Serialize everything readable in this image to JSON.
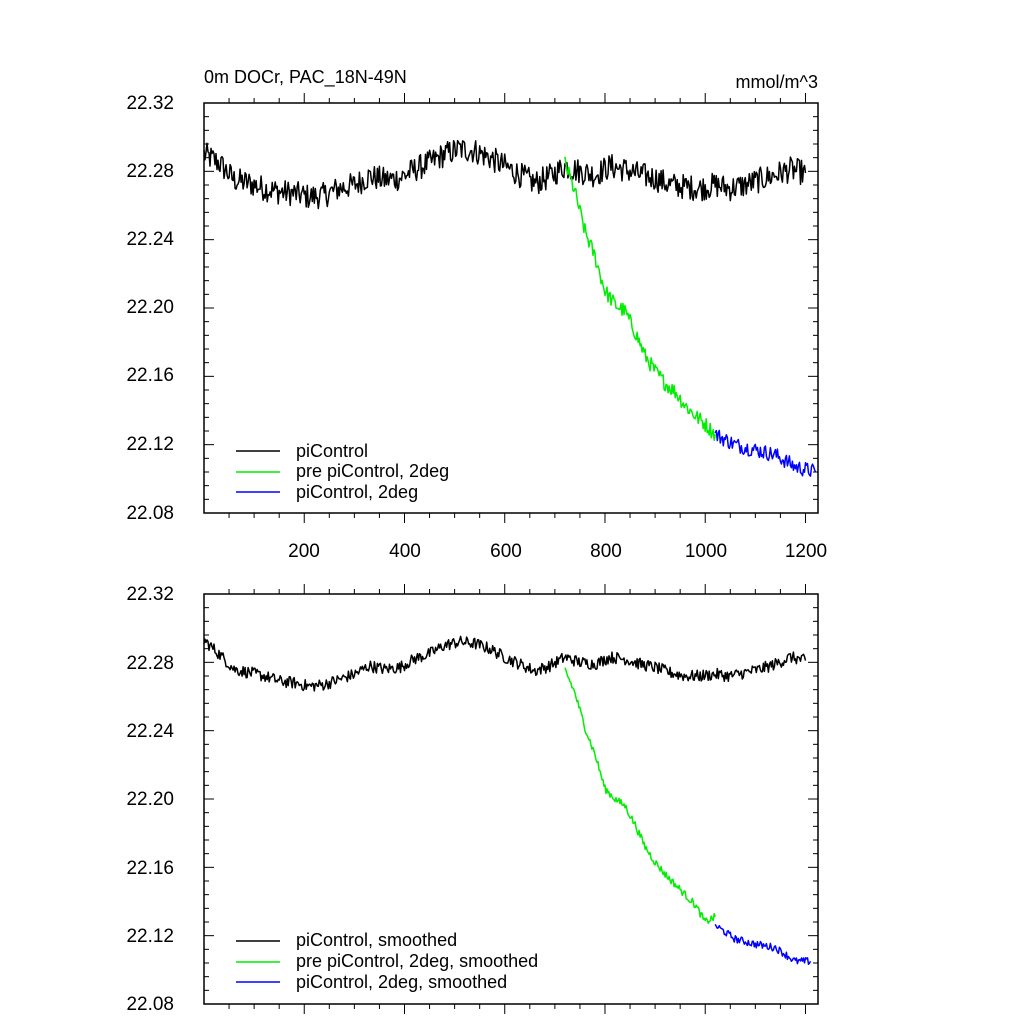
{
  "chart_data": [
    {
      "type": "line",
      "title": "0m DOCr, PAC_18N-49N",
      "units": "mmol/m^3",
      "xlim": [
        0,
        1225
      ],
      "ylim": [
        22.08,
        22.32
      ],
      "x_ticks": [
        "200",
        "400",
        "600",
        "800",
        "1000",
        "1200"
      ],
      "y_ticks": [
        "22.32",
        "22.28",
        "22.24",
        "22.20",
        "22.16",
        "22.12",
        "22.08"
      ],
      "legend_position": "bottom-left",
      "grid": false,
      "series": [
        {
          "name": "piControl",
          "color": "#000000",
          "noise": 0.0075,
          "x": [
            0,
            30,
            60,
            90,
            120,
            150,
            180,
            210,
            240,
            270,
            300,
            330,
            360,
            390,
            420,
            450,
            480,
            510,
            540,
            570,
            600,
            630,
            660,
            690,
            720,
            750,
            780,
            810,
            840,
            870,
            900,
            930,
            960,
            990,
            1020,
            1050,
            1080,
            1110,
            1140,
            1170,
            1200
          ],
          "y": [
            22.29,
            22.285,
            22.275,
            22.273,
            22.27,
            22.268,
            22.267,
            22.265,
            22.266,
            22.27,
            22.272,
            22.277,
            22.275,
            22.276,
            22.281,
            22.285,
            22.29,
            22.293,
            22.292,
            22.288,
            22.283,
            22.278,
            22.273,
            22.277,
            22.283,
            22.28,
            22.278,
            22.283,
            22.281,
            22.278,
            22.276,
            22.272,
            22.271,
            22.27,
            22.272,
            22.27,
            22.272,
            22.275,
            22.278,
            22.281,
            22.279
          ]
        },
        {
          "name": "pre piControl, 2deg",
          "color": "#00ee00",
          "noise": 0.0045,
          "x": [
            720,
            740,
            760,
            780,
            800,
            820,
            840,
            860,
            880,
            900,
            920,
            940,
            960,
            980,
            1000,
            1020
          ],
          "y": [
            22.285,
            22.268,
            22.245,
            22.23,
            22.21,
            22.202,
            22.198,
            22.186,
            22.172,
            22.163,
            22.156,
            22.151,
            22.143,
            22.137,
            22.132,
            22.126
          ]
        },
        {
          "name": "piControl, 2deg",
          "color": "#0000ff",
          "noise": 0.0045,
          "x": [
            1020,
            1060,
            1100,
            1140,
            1180,
            1220
          ],
          "y": [
            22.126,
            22.12,
            22.117,
            22.114,
            22.107,
            22.104
          ]
        }
      ]
    },
    {
      "type": "line",
      "xlim": [
        0,
        1225
      ],
      "ylim": [
        22.08,
        22.32
      ],
      "x_ticks": [],
      "y_ticks": [
        "22.32",
        "22.28",
        "22.24",
        "22.20",
        "22.16",
        "22.12",
        "22.08"
      ],
      "legend_position": "bottom-left",
      "grid": false,
      "series": [
        {
          "name": "piControl, smoothed",
          "color": "#000000",
          "noise": 0.0035,
          "x": [
            0,
            30,
            60,
            90,
            120,
            150,
            180,
            210,
            240,
            270,
            300,
            330,
            360,
            390,
            420,
            450,
            480,
            510,
            540,
            570,
            600,
            630,
            660,
            690,
            720,
            750,
            780,
            810,
            840,
            870,
            900,
            930,
            960,
            990,
            1020,
            1050,
            1080,
            1110,
            1140,
            1170,
            1200
          ],
          "y": [
            22.293,
            22.285,
            22.276,
            22.274,
            22.272,
            22.269,
            22.268,
            22.266,
            22.267,
            22.27,
            22.273,
            22.278,
            22.276,
            22.277,
            22.282,
            22.285,
            22.29,
            22.292,
            22.291,
            22.288,
            22.283,
            22.279,
            22.275,
            22.278,
            22.283,
            22.28,
            22.279,
            22.283,
            22.282,
            22.279,
            22.277,
            22.274,
            22.272,
            22.272,
            22.273,
            22.272,
            22.274,
            22.276,
            22.279,
            22.283,
            22.281
          ]
        },
        {
          "name": "pre piControl, 2deg, smoothed",
          "color": "#00ee00",
          "noise": 0.0022,
          "x": [
            720,
            740,
            760,
            780,
            800,
            820,
            840,
            860,
            880,
            900,
            920,
            940,
            960,
            980,
            1000,
            1020
          ],
          "y": [
            22.276,
            22.262,
            22.242,
            22.226,
            22.206,
            22.2,
            22.196,
            22.185,
            22.172,
            22.163,
            22.156,
            22.15,
            22.144,
            22.138,
            22.128,
            22.131
          ]
        },
        {
          "name": "piControl, 2deg, smoothed",
          "color": "#0000ff",
          "noise": 0.0022,
          "x": [
            1020,
            1060,
            1100,
            1140,
            1180,
            1210
          ],
          "y": [
            22.126,
            22.118,
            22.115,
            22.113,
            22.105,
            22.105
          ]
        }
      ]
    }
  ]
}
